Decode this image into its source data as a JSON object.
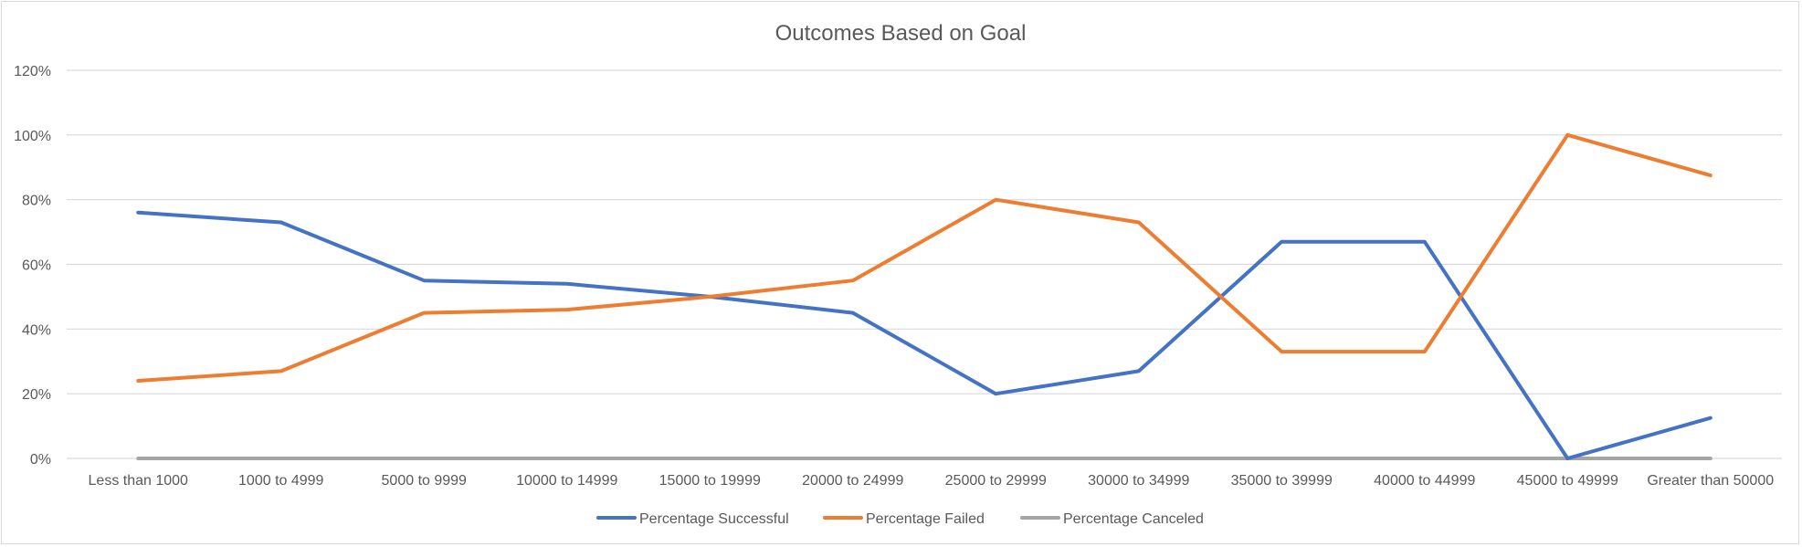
{
  "chart_data": {
    "type": "line",
    "title": "Outcomes Based on Goal",
    "xlabel": "",
    "ylabel": "",
    "categories": [
      "Less than 1000",
      "1000 to 4999",
      "5000 to 9999",
      "10000 to 14999",
      "15000 to 19999",
      "20000 to 24999",
      "25000 to 29999",
      "30000 to 34999",
      "35000 to 39999",
      "40000 to 44999",
      "45000 to 49999",
      "Greater than 50000"
    ],
    "ylim": [
      0,
      1.2
    ],
    "yticks": [
      0,
      0.2,
      0.4,
      0.6,
      0.8,
      1.0,
      1.2
    ],
    "ytick_labels": [
      "0%",
      "20%",
      "40%",
      "60%",
      "80%",
      "100%",
      "120%"
    ],
    "grid": true,
    "legend_position": "bottom",
    "series": [
      {
        "name": "Percentage Successful",
        "color": "#4472c4",
        "values": [
          0.76,
          0.73,
          0.55,
          0.54,
          0.5,
          0.45,
          0.2,
          0.27,
          0.67,
          0.67,
          0.0,
          0.125
        ]
      },
      {
        "name": "Percentage Failed",
        "color": "#ed7d31",
        "values": [
          0.24,
          0.27,
          0.45,
          0.46,
          0.5,
          0.55,
          0.8,
          0.73,
          0.33,
          0.33,
          1.0,
          0.875
        ]
      },
      {
        "name": "Percentage Canceled",
        "color": "#a5a5a5",
        "values": [
          0,
          0,
          0,
          0,
          0,
          0,
          0,
          0,
          0,
          0,
          0,
          0
        ]
      }
    ]
  }
}
